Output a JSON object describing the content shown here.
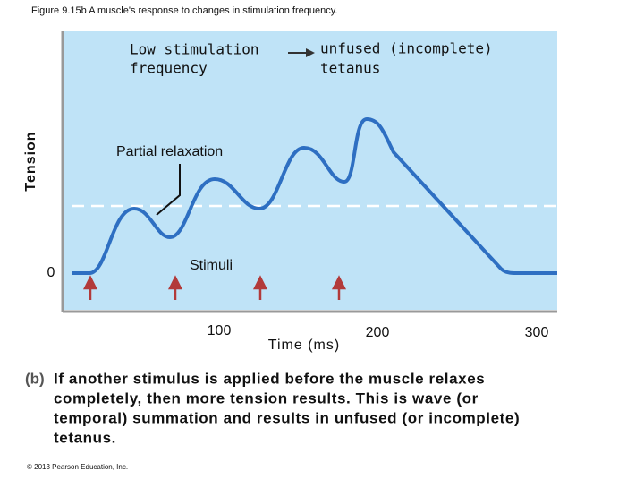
{
  "figure_title": "Figure 9.15b  A muscle's response to changes in stimulation frequency.",
  "panel": {
    "y_axis_label": "Tension",
    "y_origin_label": "0",
    "low_frequency_label": [
      "Low stimulation",
      "frequency"
    ],
    "tetanus_label": [
      "unfused (incomplete)",
      "tetanus"
    ],
    "relaxation_label": "Partial relaxation",
    "stimuli_label": "Stimuli",
    "x_tick_labels": [
      "100",
      "200",
      "300"
    ],
    "x_axis_label": "Time (ms)"
  },
  "caption": {
    "part": "(b)",
    "lines": [
      "If another stimulus is applied before the muscle relaxes",
      "completely, then more tension results. This is wave (or",
      "temporal) summation and results in unfused (or incomplete)",
      "tetanus."
    ]
  },
  "copyright": "© 2013 Pearson Education, Inc."
}
